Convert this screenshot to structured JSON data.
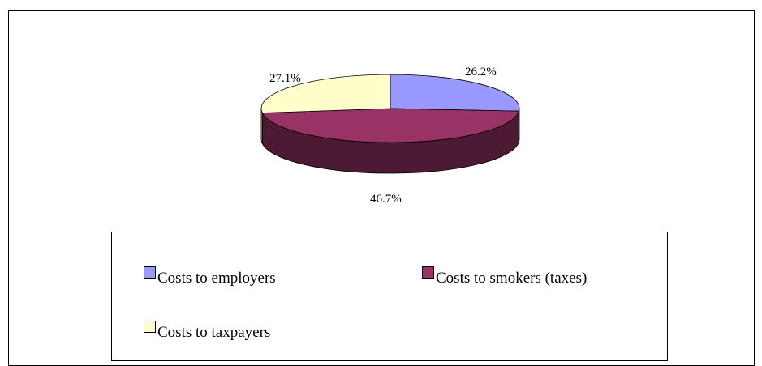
{
  "chart_data": {
    "type": "pie",
    "style": "3d",
    "title": "",
    "slices": [
      {
        "label": "Costs to employers",
        "value": 26.2,
        "value_label": "26.2%",
        "color": "#9999ff",
        "side_color": "#6b6bb3"
      },
      {
        "label": "Costs to smokers (taxes)",
        "value": 46.7,
        "value_label": "46.7%",
        "color": "#993366",
        "side_color": "#4d1a33"
      },
      {
        "label": "Costs to taxpayers",
        "value": 27.1,
        "value_label": "27.1%",
        "color": "#ffffcc",
        "side_color": "#b3b38f"
      }
    ],
    "legend_position": "bottom"
  }
}
